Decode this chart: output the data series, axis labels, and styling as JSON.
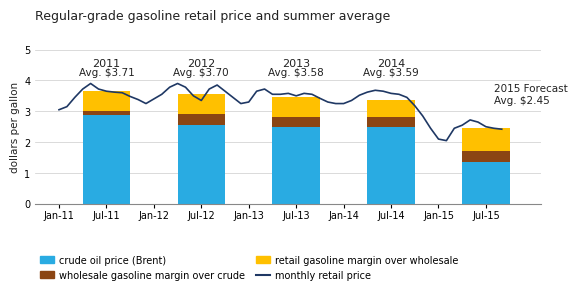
{
  "title": "Regular-grade gasoline retail price and summer average",
  "ylabel": "dollars per gallon",
  "ylim": [
    0,
    5
  ],
  "yticks": [
    0,
    1,
    2,
    3,
    4,
    5
  ],
  "colors": {
    "crude": "#29ABE2",
    "wholesale": "#8B4513",
    "retail_margin": "#FFC000",
    "line": "#1F3864",
    "bg": "#FFFFFF",
    "grid": "#CCCCCC"
  },
  "bar_centers": [
    3,
    9,
    15,
    21,
    27
  ],
  "bar_width": 3.0,
  "bar_data": {
    "crude": [
      2.88,
      2.55,
      2.5,
      2.5,
      1.35
    ],
    "wholesale": [
      0.12,
      0.35,
      0.3,
      0.3,
      0.35
    ],
    "retail": [
      0.65,
      0.65,
      0.65,
      0.55,
      0.75
    ]
  },
  "year_labels": [
    "2011",
    "2012",
    "2013",
    "2014"
  ],
  "year_avgs": [
    "Avg. $3.71",
    "Avg. $3.70",
    "Avg. $3.58",
    "Avg. $3.59"
  ],
  "forecast_label": "2015 Forecast\nAvg. $2.45",
  "forecast_x": 27.5,
  "forecast_y": 3.55,
  "xtick_positions": [
    0,
    3,
    6,
    9,
    12,
    15,
    18,
    21,
    24,
    27
  ],
  "xtick_labels": [
    "Jan-11",
    "Jul-11",
    "Jan-12",
    "Jul-12",
    "Jan-13",
    "Jul-13",
    "Jan-14",
    "Jul-14",
    "Jan-15",
    "Jul-15"
  ],
  "xlim": [
    -1.5,
    30.5
  ],
  "line_y": [
    3.05,
    3.15,
    3.45,
    3.72,
    3.9,
    3.72,
    3.65,
    3.62,
    3.6,
    3.48,
    3.38,
    3.25,
    3.4,
    3.55,
    3.78,
    3.9,
    3.78,
    3.5,
    3.35,
    3.72,
    3.85,
    3.65,
    3.45,
    3.25,
    3.3,
    3.65,
    3.72,
    3.55,
    3.55,
    3.58,
    3.5,
    3.58,
    3.55,
    3.42,
    3.3,
    3.25,
    3.25,
    3.35,
    3.52,
    3.62,
    3.68,
    3.65,
    3.58,
    3.55,
    3.45,
    3.18,
    2.85,
    2.45,
    2.1,
    2.05,
    2.45,
    2.55,
    2.72,
    2.65,
    2.5,
    2.45,
    2.42
  ],
  "legend_labels": [
    "crude oil price (Brent)",
    "wholesale gasoline margin over crude",
    "retail gasoline margin over wholesale",
    "monthly retail price"
  ]
}
